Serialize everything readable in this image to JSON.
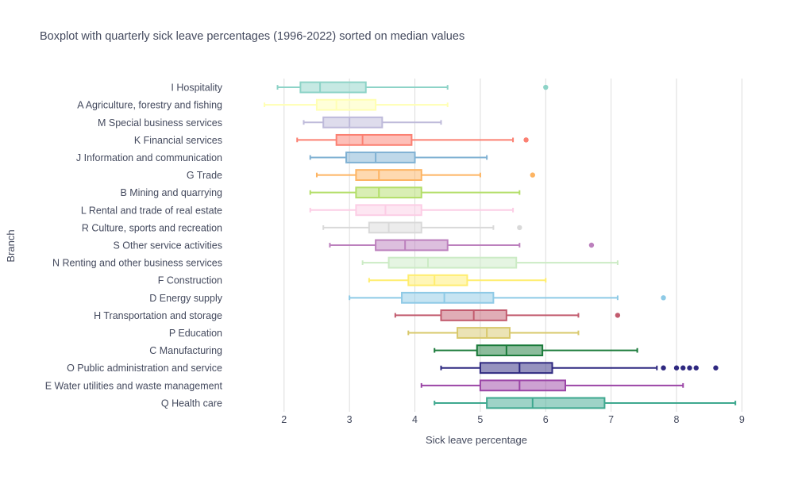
{
  "chart_data": {
    "type": "box",
    "orientation": "horizontal",
    "title": "Boxplot with quarterly sick leave percentages (1996-2022) sorted on median values",
    "xlabel": "Sick leave percentage",
    "ylabel": "Branch",
    "xlim": [
      1.25,
      9.25
    ],
    "xticks": [
      2,
      3,
      4,
      5,
      6,
      7,
      8,
      9
    ],
    "grid": "vertical",
    "legend": "none",
    "series": [
      {
        "name": "I Hospitality",
        "color": "#8dd3c7",
        "min": 1.9,
        "q1": 2.25,
        "median": 2.55,
        "q3": 3.25,
        "max": 4.5,
        "outliers": [
          6.0
        ]
      },
      {
        "name": "A Agriculture, forestry and fishing",
        "color": "#ffffb3",
        "min": 1.7,
        "q1": 2.5,
        "median": 2.8,
        "q3": 3.4,
        "max": 4.5,
        "outliers": []
      },
      {
        "name": "M Special business services",
        "color": "#bebada",
        "min": 2.3,
        "q1": 2.6,
        "median": 3.0,
        "q3": 3.5,
        "max": 4.4,
        "outliers": []
      },
      {
        "name": "K Financial services",
        "color": "#fb8072",
        "min": 2.2,
        "q1": 2.8,
        "median": 3.2,
        "q3": 3.95,
        "max": 5.5,
        "outliers": [
          5.7
        ]
      },
      {
        "name": "J Information and communication",
        "color": "#80b1d3",
        "min": 2.4,
        "q1": 2.95,
        "median": 3.4,
        "q3": 4.0,
        "max": 5.1,
        "outliers": []
      },
      {
        "name": "G Trade",
        "color": "#fdb462",
        "min": 2.5,
        "q1": 3.1,
        "median": 3.45,
        "q3": 4.1,
        "max": 5.0,
        "outliers": [
          5.8
        ]
      },
      {
        "name": "B Mining and quarrying",
        "color": "#b3de69",
        "min": 2.4,
        "q1": 3.1,
        "median": 3.45,
        "q3": 4.1,
        "max": 5.6,
        "outliers": []
      },
      {
        "name": "L Rental and trade of real estate",
        "color": "#fccde5",
        "min": 2.4,
        "q1": 3.1,
        "median": 3.55,
        "q3": 4.1,
        "max": 5.5,
        "outliers": []
      },
      {
        "name": "R Culture, sports and recreation",
        "color": "#d9d9d9",
        "min": 2.6,
        "q1": 3.3,
        "median": 3.6,
        "q3": 4.1,
        "max": 5.2,
        "outliers": [
          5.6
        ]
      },
      {
        "name": "S Other service activities",
        "color": "#bc80bd",
        "min": 2.7,
        "q1": 3.4,
        "median": 3.85,
        "q3": 4.5,
        "max": 5.6,
        "outliers": [
          6.7
        ]
      },
      {
        "name": "N Renting and other business services",
        "color": "#ccebc5",
        "min": 3.2,
        "q1": 3.6,
        "median": 4.2,
        "q3": 5.55,
        "max": 7.1,
        "outliers": []
      },
      {
        "name": "F Construction",
        "color": "#ffed6f",
        "min": 3.3,
        "q1": 3.9,
        "median": 4.3,
        "q3": 4.8,
        "max": 6.0,
        "outliers": []
      },
      {
        "name": "D Energy supply",
        "color": "#8ecae6",
        "min": 3.0,
        "q1": 3.8,
        "median": 4.45,
        "q3": 5.2,
        "max": 7.1,
        "outliers": [
          7.8
        ]
      },
      {
        "name": "H Transportation and storage",
        "color": "#c25b6e",
        "min": 3.7,
        "q1": 4.4,
        "median": 4.9,
        "q3": 5.4,
        "max": 6.5,
        "outliers": [
          7.1
        ]
      },
      {
        "name": "P Education",
        "color": "#d8c86b",
        "min": 3.9,
        "q1": 4.65,
        "median": 5.1,
        "q3": 5.45,
        "max": 6.5,
        "outliers": []
      },
      {
        "name": "C Manufacturing",
        "color": "#1a7a3a",
        "min": 4.3,
        "q1": 4.95,
        "median": 5.4,
        "q3": 5.95,
        "max": 7.4,
        "outliers": []
      },
      {
        "name": "O Public administration and service",
        "color": "#2e2880",
        "min": 4.4,
        "q1": 5.0,
        "median": 5.6,
        "q3": 6.1,
        "max": 7.7,
        "outliers": [
          7.8,
          8.0,
          8.1,
          8.2,
          8.3,
          8.6
        ]
      },
      {
        "name": "E Water utilities and waste management",
        "color": "#9b45a6",
        "min": 4.1,
        "q1": 5.0,
        "median": 5.6,
        "q3": 6.3,
        "max": 8.1,
        "outliers": []
      },
      {
        "name": "Q Health care",
        "color": "#3ea88f",
        "min": 4.3,
        "q1": 5.1,
        "median": 5.8,
        "q3": 6.9,
        "max": 8.9,
        "outliers": []
      }
    ]
  }
}
